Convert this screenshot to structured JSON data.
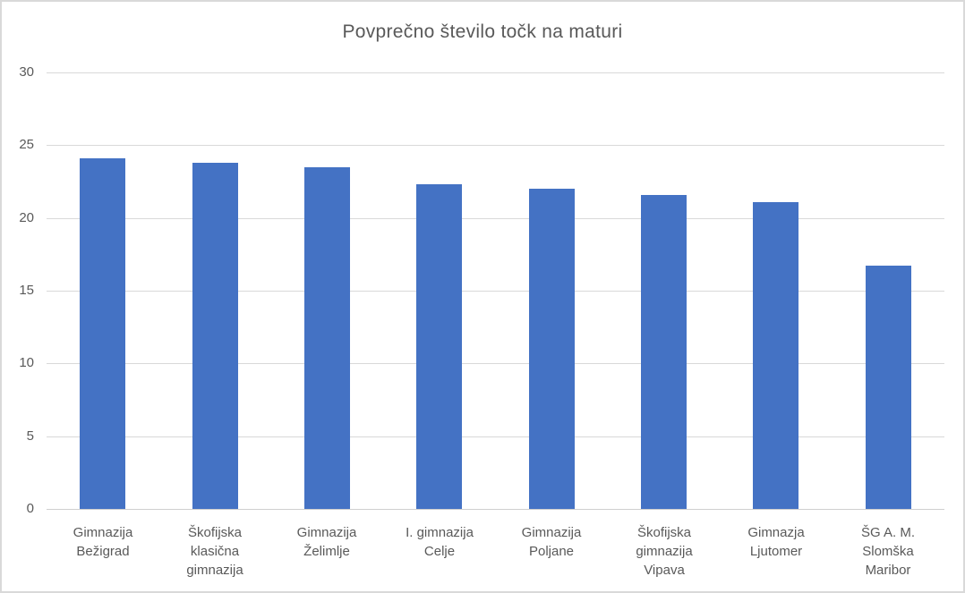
{
  "chart_data": {
    "type": "bar",
    "title": "Povprečno število točk na maturi",
    "categories": [
      "Gimnazija Bežigrad",
      "Škofijska klasična gimnazija",
      "Gimnazija Želimlje",
      "I. gimnazija Celje",
      "Gimnazija Poljane",
      "Škofijska gimnazija Vipava",
      "Gimnazja Ljutomer",
      "ŠG A. M. Slomška Maribor"
    ],
    "values": [
      24.1,
      23.8,
      23.5,
      22.3,
      22.0,
      21.6,
      21.1,
      16.7
    ],
    "xlabel": "",
    "ylabel": "",
    "ylim": [
      0,
      30
    ],
    "yticks": [
      0,
      5,
      10,
      15,
      20,
      25,
      30
    ],
    "grid": true,
    "legend": false,
    "bar_color": "#4472C4",
    "text_color": "#595959",
    "gridline_color": "#D9D9D9",
    "background_color": "#FFFFFF"
  }
}
